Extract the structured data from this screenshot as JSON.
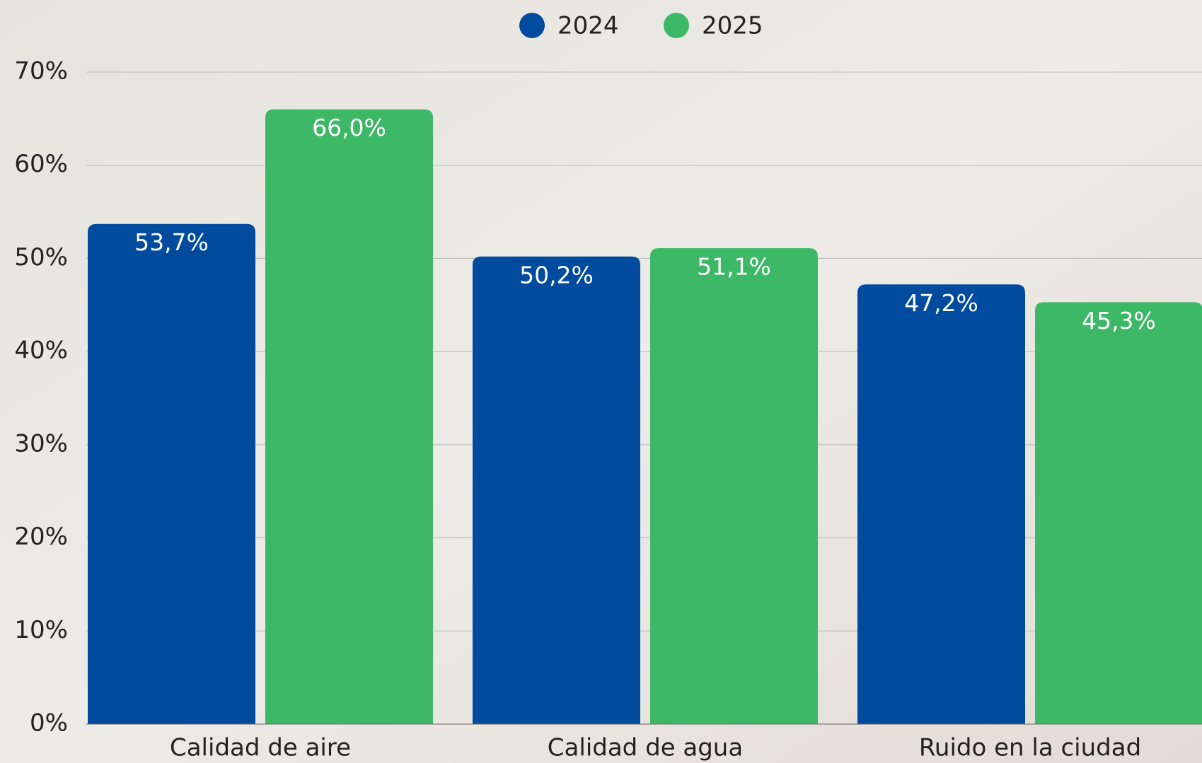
{
  "chart_data": {
    "type": "bar",
    "categories": [
      "Calidad de aire",
      "Calidad de agua",
      "Ruido en la ciudad"
    ],
    "series": [
      {
        "name": "2024",
        "color": "#004b9e",
        "values": [
          53.7,
          50.2,
          47.2
        ],
        "value_labels": [
          "53,7%",
          "50,2%",
          "47,2%"
        ]
      },
      {
        "name": "2025",
        "color": "#3db867",
        "values": [
          66.0,
          51.1,
          45.3
        ],
        "value_labels": [
          "66,0%",
          "51,1%",
          "45,3%"
        ]
      }
    ],
    "ylim": [
      0,
      70
    ],
    "yticks": [
      {
        "value": 0,
        "label": "0%"
      },
      {
        "value": 10,
        "label": "10%"
      },
      {
        "value": 20,
        "label": "20%"
      },
      {
        "value": 30,
        "label": "30%"
      },
      {
        "value": 40,
        "label": "40%"
      },
      {
        "value": 50,
        "label": "50%"
      },
      {
        "value": 60,
        "label": "60%"
      },
      {
        "value": 70,
        "label": "70%"
      }
    ],
    "grid": true,
    "legend": "top"
  }
}
